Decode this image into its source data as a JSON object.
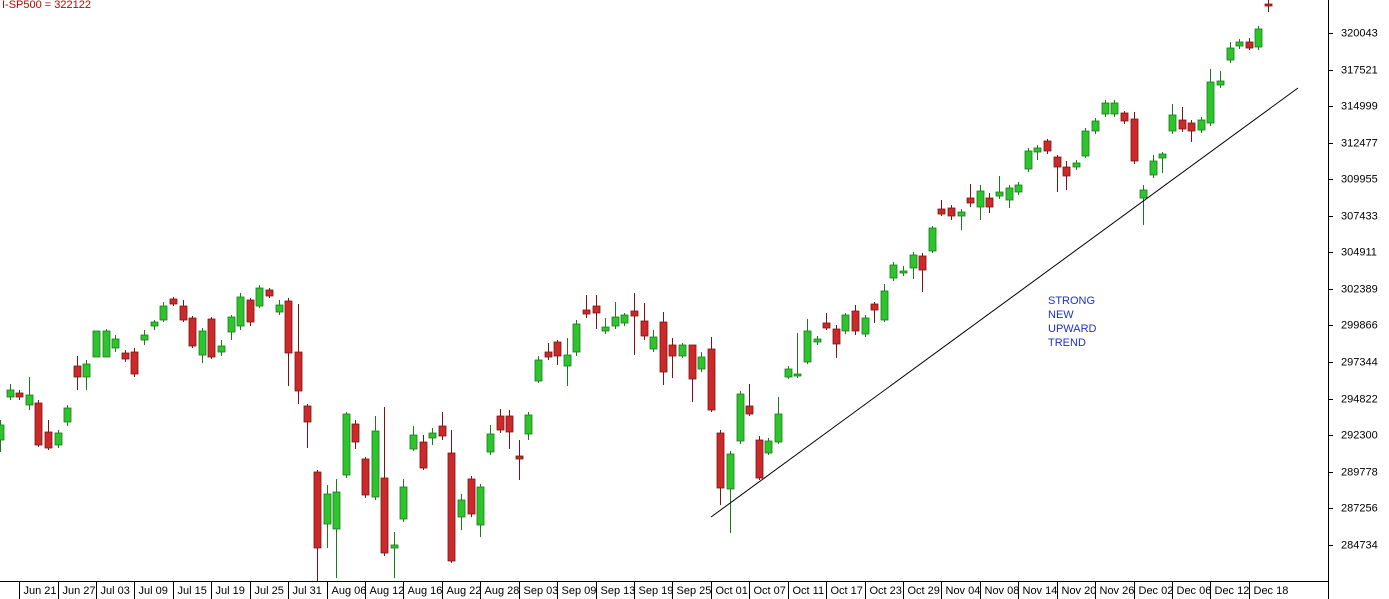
{
  "chart_data": {
    "type": "candlestick",
    "title": "I-SP500 = 322122",
    "annotation": [
      "STRONG",
      "NEW",
      "UPWARD",
      "TREND"
    ],
    "up_color": "#2ec42e",
    "down_color": "#cc2a2a",
    "categories": [
      null,
      null,
      "Jun 21",
      null,
      null,
      null,
      "Jun 27",
      null,
      null,
      null,
      "Jul 03",
      null,
      null,
      null,
      "Jul 09",
      null,
      null,
      null,
      "Jul 15",
      null,
      null,
      null,
      "Jul 19",
      null,
      null,
      null,
      "Jul 25",
      null,
      null,
      null,
      "Jul 31",
      null,
      null,
      null,
      "Aug 06",
      null,
      null,
      null,
      "Aug 12",
      null,
      null,
      null,
      "Aug 16",
      null,
      null,
      null,
      "Aug 22",
      null,
      null,
      null,
      "Aug 28",
      null,
      null,
      null,
      "Sep 03",
      null,
      null,
      null,
      "Sep 09",
      null,
      null,
      null,
      "Sep 13",
      null,
      null,
      null,
      "Sep 19",
      null,
      null,
      null,
      "Sep 25",
      null,
      null,
      null,
      "Oct 01",
      null,
      null,
      null,
      "Oct 07",
      null,
      null,
      null,
      "Oct 11",
      null,
      null,
      null,
      "Oct 17",
      null,
      null,
      null,
      "Oct 23",
      null,
      null,
      null,
      "Oct 29",
      null,
      null,
      null,
      "Nov 04",
      null,
      null,
      null,
      "Nov 08",
      null,
      null,
      null,
      "Nov 14",
      null,
      null,
      null,
      "Nov 20",
      null,
      null,
      null,
      "Nov 26",
      null,
      null,
      null,
      "Dec 02",
      null,
      null,
      null,
      "Dec 06",
      null,
      null,
      null,
      "Dec 12",
      null,
      null,
      null,
      "Dec 18",
      null,
      null
    ],
    "open": [
      291960,
      294927,
      295203,
      294375,
      294513,
      292512,
      291615,
      293202,
      297066,
      296307,
      297687,
      297687,
      298308,
      297963,
      298032,
      298860,
      299826,
      300240,
      301689,
      301206,
      300378,
      297825,
      300309,
      298032,
      299412,
      299826,
      301620,
      301206,
      302310,
      300792,
      301551,
      298032,
      294306,
      289752,
      286164,
      285819,
      289545,
      293064,
      290649,
      288027,
      289338,
      284508,
      286509,
      291339,
      291822,
      292098,
      292926,
      291063,
      286647,
      289269,
      286095,
      291132,
      293616,
      293616,
      290856,
      292374,
      296031,
      298032,
      298722,
      297066,
      298032,
      300930,
      301206,
      299481,
      299826,
      300033,
      300861,
      300171,
      298239,
      300102,
      298515,
      297756,
      298515,
      296859,
      298239,
      292443,
      288579,
      291891,
      294306,
      291960,
      291063,
      291822,
      296307,
      296376,
      297342,
      298722,
      300033,
      299619,
      299481,
      300861,
      299274,
      301344,
      300240,
      303138,
      303483,
      303828,
      304656,
      305001,
      307899,
      307968,
      307416,
      308658,
      308037,
      308658,
      308796,
      308520,
      309072,
      310659,
      311832,
      312591,
      311487,
      310797,
      310797,
      311556,
      313281,
      314454,
      314454,
      314523,
      314109,
      308658,
      310245,
      311418,
      313281,
      314040,
      313833,
      313350,
      313833,
      316455,
      318180,
      319146,
      319422,
      319077,
      322044
    ],
    "high": [
      293340,
      295824,
      295410,
      296307,
      294720,
      293340,
      292650,
      294375,
      297756,
      297480,
      299481,
      299619,
      299205,
      298170,
      298308,
      299550,
      300240,
      301482,
      301827,
      301620,
      300516,
      299688,
      300447,
      298860,
      300585,
      302103,
      301758,
      302655,
      302448,
      301620,
      301758,
      301344,
      294444,
      289890,
      288855,
      289269,
      293892,
      293340,
      290787,
      293616,
      294237,
      285612,
      289269,
      292926,
      292305,
      292788,
      293892,
      292650,
      288234,
      289476,
      288924,
      292995,
      294099,
      294030,
      291960,
      293892,
      297756,
      298653,
      298860,
      298998,
      300240,
      301965,
      301965,
      300378,
      301482,
      300723,
      302103,
      301413,
      299550,
      300792,
      298998,
      298653,
      298515,
      298032,
      299067,
      292650,
      291201,
      295341,
      295824,
      292236,
      292098,
      294927,
      297066,
      299343,
      300309,
      299136,
      300723,
      299895,
      300723,
      301275,
      300585,
      301482,
      302724,
      304242,
      303966,
      304932,
      304863,
      306726,
      308520,
      308175,
      307899,
      309624,
      309555,
      309003,
      310176,
      309555,
      309762,
      312108,
      312315,
      312729,
      311625,
      311211,
      311280,
      313488,
      314178,
      315420,
      315420,
      314661,
      314592,
      309555,
      311625,
      311832,
      315144,
      314937,
      314040,
      314247,
      317559,
      317421,
      319422,
      319629,
      319698,
      320526,
      322320
    ],
    "low": [
      291132,
      294720,
      294720,
      294030,
      291477,
      291270,
      291408,
      292926,
      295410,
      295410,
      297687,
      297687,
      298032,
      297342,
      296307,
      298515,
      299550,
      300102,
      301206,
      300102,
      298308,
      297273,
      297549,
      297756,
      298860,
      299550,
      299826,
      301068,
      301758,
      300585,
      295686,
      294444,
      291408,
      282231,
      284508,
      282438,
      289338,
      291339,
      287958,
      287820,
      283956,
      282438,
      286302,
      291201,
      289890,
      291615,
      291960,
      283473,
      285750,
      286647,
      285267,
      290925,
      292443,
      291339,
      289200,
      291960,
      295893,
      297480,
      297135,
      295686,
      297756,
      300378,
      299619,
      299274,
      299619,
      299826,
      297825,
      298860,
      298032,
      295755,
      296238,
      297618,
      294582,
      296652,
      293892,
      287475,
      285543,
      291684,
      293616,
      289200,
      290925,
      291684,
      296169,
      296238,
      297204,
      298515,
      299550,
      297618,
      299274,
      299205,
      299067,
      300033,
      300102,
      302931,
      303276,
      303069,
      302172,
      304863,
      307416,
      307140,
      306450,
      308037,
      307140,
      307623,
      308589,
      307968,
      308865,
      310452,
      311280,
      311694,
      309072,
      309210,
      310590,
      311418,
      313074,
      314247,
      314247,
      313764,
      311004,
      306795,
      310038,
      310383,
      313074,
      313212,
      312522,
      313143,
      313626,
      316248,
      317973,
      318939,
      318870,
      318870,
      321492
    ],
    "close": [
      292995,
      295410,
      294927,
      295065,
      291615,
      291408,
      292443,
      294168,
      296307,
      297204,
      299481,
      299481,
      298929,
      297549,
      296514,
      299205,
      300102,
      301206,
      301344,
      300240,
      298446,
      299481,
      297687,
      298446,
      300447,
      301827,
      300102,
      302448,
      301896,
      301275,
      297963,
      295341,
      293202,
      284508,
      288234,
      288372,
      293754,
      291822,
      288165,
      292581,
      284163,
      284715,
      288717,
      292305,
      290028,
      292443,
      292236,
      283611,
      287820,
      286854,
      288717,
      292374,
      292650,
      292512,
      290649,
      293685,
      297480,
      297687,
      297756,
      297825,
      299964,
      300654,
      300723,
      299757,
      300447,
      300585,
      300516,
      299136,
      299067,
      296652,
      297756,
      298515,
      296169,
      297687,
      294030,
      288648,
      290994,
      295134,
      293754,
      289338,
      291891,
      293754,
      296859,
      296514,
      299481,
      298929,
      299688,
      298584,
      300585,
      299481,
      300378,
      300930,
      302241,
      304035,
      303621,
      304725,
      303690,
      306588,
      307554,
      307416,
      307692,
      308313,
      309141,
      308037,
      309072,
      309348,
      309555,
      311901,
      312108,
      311901,
      310797,
      310176,
      311073,
      313281,
      313971,
      315213,
      315213,
      313971,
      311211,
      309210,
      311211,
      311694,
      314385,
      313419,
      313281,
      314040,
      316662,
      316731,
      319008,
      319422,
      319008,
      320319,
      321906
    ],
    "trendline": {
      "x": [
        74.02,
        135.12
      ],
      "values": [
        286647,
        316248
      ]
    },
    "ylim": [
      282231,
      322320
    ],
    "yticks": [
      320043,
      317521,
      314999,
      312477,
      309955,
      307433,
      304911,
      302389,
      299866,
      297344,
      294822,
      292300,
      289778,
      287256,
      284734
    ],
    "grid": false
  }
}
